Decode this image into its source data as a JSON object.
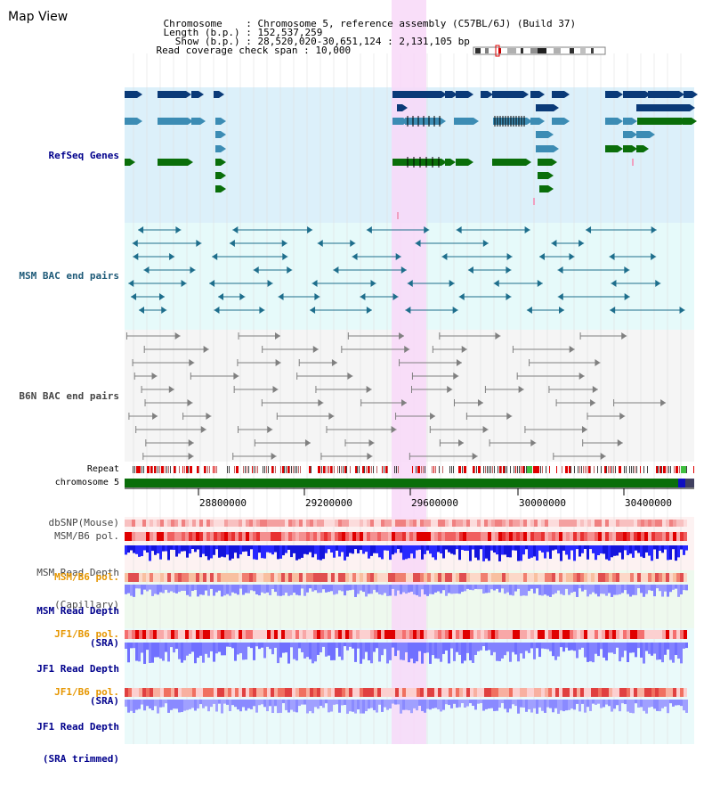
{
  "page": {
    "title": "Map View"
  },
  "header": {
    "chromosome": {
      "label": "Chromosome   ",
      "value": "Chromosome 5, reference assembly (C57BL/6J) (Build 37)"
    },
    "length": {
      "label": "Length (b.p.)",
      "value": "152,537,259"
    },
    "show": {
      "label": "  Show (b.p.)",
      "value": "28,520,020-30,651,124 : 2,131,105 bp"
    },
    "coverage": {
      "label": "Read coverage check span",
      "value": "10,000"
    }
  },
  "tracks": {
    "refseq": "RefSeq Genes",
    "msm_bac": "MSM BAC end pairs",
    "b6n_bac": "B6N BAC end pairs",
    "repeat": "Repeat",
    "chromosome": "chromosome 5",
    "dbsnp": "dbSNP(Mouse)",
    "msm_b6_pol": "MSM/B6 pol.",
    "msm_read_depth_cap_1": "MSM Read Depth",
    "msm_read_depth_cap_2": "(Capillary)",
    "msm_b6_pol_sra": "MSM/B6 pol.",
    "msm_read_depth_sra_1": "MSM Read Depth",
    "msm_read_depth_sra_2": "(SRA)",
    "jf1_b6_pol_1": "JF1/B6 pol.",
    "jf1_read_depth_sra_1": "JF1 Read Depth",
    "jf1_read_depth_sra_2": "(SRA)",
    "jf1_b6_pol_2": "JF1/B6 pol.",
    "jf1_read_depth_trim_1": "JF1 Read Depth",
    "jf1_read_depth_trim_2": "(SRA trimmed)"
  },
  "axis": {
    "ticks": [
      "28800000",
      "29200000",
      "29600000",
      "30000000",
      "30400000"
    ]
  },
  "colors": {
    "refseq_bg": "#dcf0fa",
    "msm_bg": "#e6fafa",
    "b6n_bg": "#f5f5f5",
    "highlight": "#f8d8f8",
    "gene_dark": "#0a3a78",
    "gene_mid": "#3c8cb4",
    "gene_green": "#0a6e0a",
    "msm_bac": "#1e6e8c",
    "b6n_bac": "#808080",
    "chromosome_bar": "#0a6e0a",
    "label_blue": "#00008c",
    "label_teal": "#1e5a78",
    "label_gray": "#464646",
    "label_orange": "#e69600",
    "depth_dark": "#1414dc",
    "depth_light": "#8282ff"
  }
}
